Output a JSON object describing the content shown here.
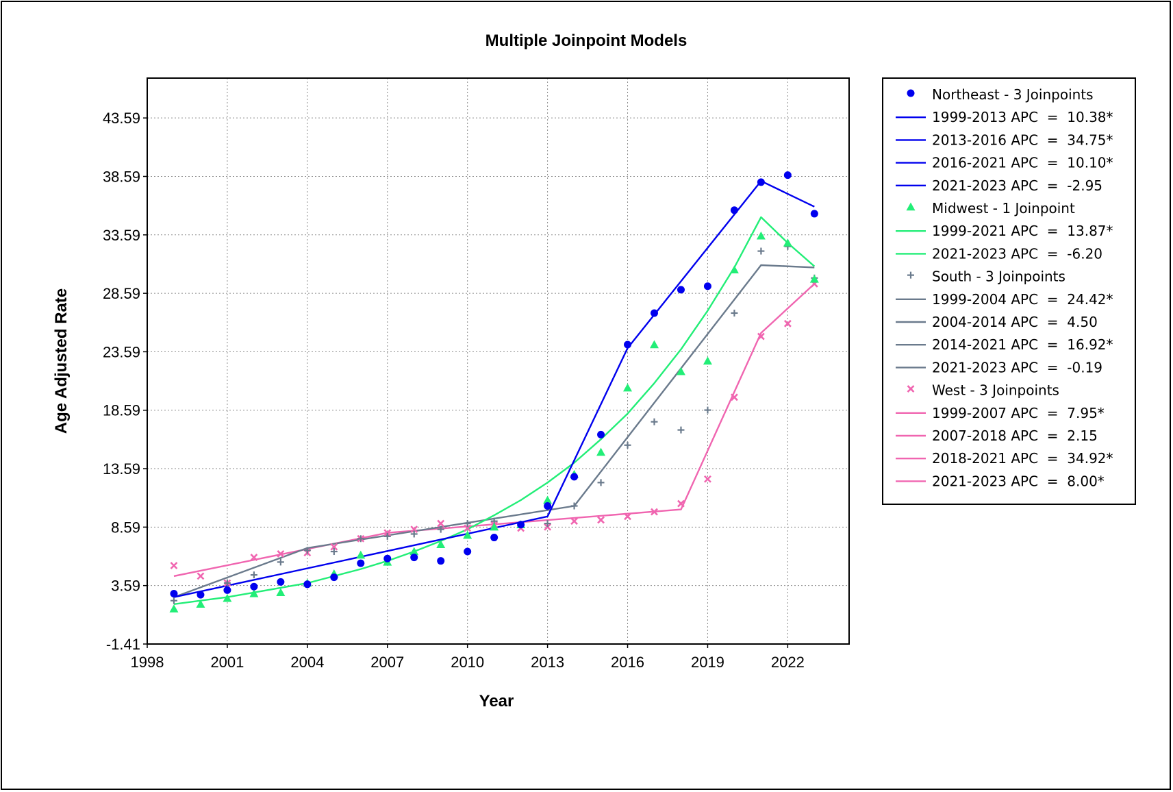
{
  "chart_data": {
    "type": "scatter",
    "title": "Multiple Joinpoint Models",
    "xlabel": "Year",
    "ylabel": "Age Adjusted Rate",
    "xlim": [
      1998,
      2024.3
    ],
    "ylim": [
      -1.41,
      47.0
    ],
    "xticks": [
      1998,
      2001,
      2004,
      2007,
      2010,
      2013,
      2016,
      2019,
      2022
    ],
    "yticks": [
      -1.41,
      3.59,
      8.59,
      13.59,
      18.59,
      23.59,
      28.59,
      33.59,
      38.59,
      43.59
    ],
    "grid": true,
    "legend_position": "right",
    "series": [
      {
        "name": "Northeast - 3 Joinpoints",
        "color": "#0000ee",
        "marker": "circle",
        "x": [
          1999,
          2000,
          2001,
          2002,
          2003,
          2004,
          2005,
          2006,
          2007,
          2008,
          2009,
          2010,
          2011,
          2012,
          2013,
          2014,
          2015,
          2016,
          2017,
          2018,
          2019,
          2020,
          2021,
          2022,
          2023
        ],
        "y": [
          2.9,
          2.8,
          3.2,
          3.5,
          3.9,
          3.7,
          4.3,
          5.5,
          5.9,
          6.0,
          5.7,
          6.5,
          7.7,
          8.8,
          10.4,
          12.9,
          16.5,
          24.2,
          26.9,
          28.9,
          29.2,
          35.7,
          38.1,
          38.7,
          35.4
        ],
        "fit_x": [
          1999,
          2013,
          2016,
          2021,
          2023
        ],
        "fit_y": [
          2.6,
          9.5,
          23.9,
          38.2,
          36.0
        ],
        "segments": [
          "1999-2013 APC  =  10.38*",
          "2013-2016 APC  =  34.75*",
          "2016-2021 APC  =  10.10*",
          "2021-2023 APC  =  -2.95"
        ]
      },
      {
        "name": "Midwest - 1 Joinpoint",
        "color": "#22ee77",
        "marker": "triangle",
        "x": [
          1999,
          2000,
          2001,
          2002,
          2003,
          2004,
          2005,
          2006,
          2007,
          2008,
          2009,
          2010,
          2011,
          2012,
          2013,
          2014,
          2015,
          2016,
          2017,
          2018,
          2019,
          2020,
          2021,
          2022,
          2023
        ],
        "y": [
          1.6,
          2.0,
          2.5,
          2.9,
          3.0,
          3.8,
          4.6,
          6.2,
          5.6,
          6.5,
          7.1,
          7.9,
          8.6,
          8.8,
          10.9,
          13.1,
          15.0,
          20.5,
          24.2,
          21.9,
          22.8,
          30.6,
          33.5,
          32.9,
          29.8
        ],
        "fit_x": [
          1999,
          2000,
          2001,
          2002,
          2003,
          2004,
          2005,
          2006,
          2007,
          2008,
          2009,
          2010,
          2011,
          2012,
          2013,
          2014,
          2015,
          2016,
          2017,
          2018,
          2019,
          2020,
          2021,
          2022,
          2023
        ],
        "fit_y": [
          2.0,
          2.3,
          2.6,
          3.0,
          3.4,
          3.8,
          4.4,
          5.0,
          5.7,
          6.5,
          7.4,
          8.4,
          9.6,
          10.9,
          12.4,
          14.1,
          16.1,
          18.3,
          20.9,
          23.8,
          27.1,
          30.8,
          35.1,
          32.9,
          30.9
        ],
        "segments": [
          "1999-2021 APC  =  13.87*",
          "2021-2023 APC  =  -6.20"
        ]
      },
      {
        "name": "South - 3 Joinpoints",
        "color": "#6a7a8c",
        "marker": "plus",
        "x": [
          1999,
          2000,
          2001,
          2002,
          2003,
          2004,
          2005,
          2006,
          2007,
          2008,
          2009,
          2010,
          2011,
          2012,
          2013,
          2014,
          2015,
          2016,
          2017,
          2018,
          2019,
          2020,
          2021,
          2022,
          2023
        ],
        "y": [
          2.3,
          2.8,
          3.8,
          4.5,
          5.6,
          6.6,
          6.5,
          7.6,
          7.8,
          8.0,
          8.4,
          8.9,
          9.1,
          8.8,
          8.9,
          10.4,
          12.4,
          15.6,
          17.6,
          16.9,
          18.6,
          26.9,
          32.2,
          32.6,
          29.9
        ],
        "fit_x": [
          1999,
          2004,
          2014,
          2021,
          2023
        ],
        "fit_y": [
          2.6,
          6.8,
          10.4,
          31.0,
          30.8
        ],
        "segments": [
          "1999-2004 APC  =  24.42*",
          "2004-2014 APC  =  4.50",
          "2014-2021 APC  =  16.92*",
          "2021-2023 APC  =  -0.19"
        ]
      },
      {
        "name": "West - 3 Joinpoints",
        "color": "#f065b0",
        "marker": "x",
        "x": [
          1999,
          2000,
          2001,
          2002,
          2003,
          2004,
          2005,
          2006,
          2007,
          2008,
          2009,
          2010,
          2011,
          2012,
          2013,
          2014,
          2015,
          2016,
          2017,
          2018,
          2019,
          2020,
          2021,
          2022,
          2023
        ],
        "y": [
          5.3,
          4.4,
          3.8,
          6.0,
          6.3,
          6.4,
          6.9,
          7.6,
          8.1,
          8.4,
          8.9,
          8.5,
          8.8,
          8.5,
          8.6,
          9.1,
          9.2,
          9.5,
          9.9,
          10.6,
          12.7,
          19.7,
          24.9,
          26.0,
          29.4
        ],
        "fit_x": [
          1999,
          2007,
          2018,
          2021,
          2023
        ],
        "fit_y": [
          4.4,
          8.1,
          10.1,
          25.2,
          29.4
        ],
        "segments": [
          "1999-2007 APC  =  7.95*",
          "2007-2018 APC  =  2.15",
          "2018-2021 APC  =  34.92*",
          "2021-2023 APC  =  8.00*"
        ]
      }
    ]
  }
}
